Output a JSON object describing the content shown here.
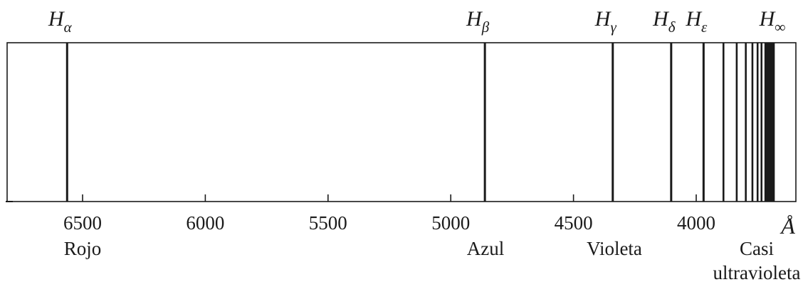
{
  "spectral_lines": [
    {
      "symbol": "H",
      "subscript": "α",
      "wavelength": 6563,
      "labeled": true
    },
    {
      "symbol": "H",
      "subscript": "β",
      "wavelength": 4861,
      "labeled": true
    },
    {
      "symbol": "H",
      "subscript": "γ",
      "wavelength": 4340,
      "labeled": true
    },
    {
      "symbol": "H",
      "subscript": "δ",
      "wavelength": 4102,
      "labeled": true
    },
    {
      "symbol": "H",
      "subscript": "ε",
      "wavelength": 3970,
      "labeled": true
    },
    {
      "wavelength": 3889,
      "labeled": false
    },
    {
      "wavelength": 3835,
      "labeled": false
    },
    {
      "wavelength": 3798,
      "labeled": false
    },
    {
      "wavelength": 3771,
      "labeled": false
    },
    {
      "wavelength": 3750,
      "labeled": false
    },
    {
      "wavelength": 3734,
      "labeled": false
    }
  ],
  "series_limit": {
    "symbol": "H",
    "subscript": "∞",
    "wavelength_start": 3722,
    "wavelength_end": 3680
  },
  "axis": {
    "ticks": [
      6500,
      6000,
      5500,
      5000,
      4500,
      4000
    ],
    "unit": "Å"
  },
  "regions": [
    {
      "lines": [
        "Rojo"
      ],
      "wavelength": 6500
    },
    {
      "lines": [
        "Azul"
      ],
      "wavelength": 4861
    },
    {
      "lines": [
        "Violeta"
      ],
      "wavelength": 4340
    },
    {
      "lines": [
        "Casi",
        "ultravioleta"
      ],
      "wavelength": 3780
    }
  ],
  "colors": {
    "line": "#1a1a1a",
    "frame": "#1a1a1a",
    "text": "#1a1a1a"
  }
}
